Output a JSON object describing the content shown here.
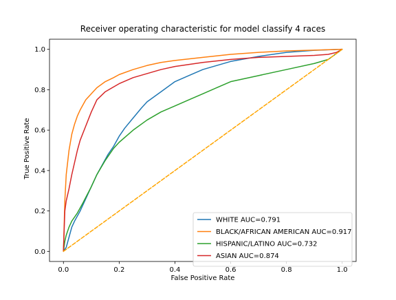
{
  "chart_data": {
    "type": "line",
    "title": "Receiver operating characteristic for model classify 4 races",
    "xlabel": "False Positive Rate",
    "ylabel": "True Positive Rate",
    "xlim": [
      -0.05,
      1.05
    ],
    "ylim": [
      -0.05,
      1.05
    ],
    "x_ticks": [
      0.0,
      0.2,
      0.4,
      0.6,
      0.8,
      1.0
    ],
    "y_ticks": [
      0.0,
      0.2,
      0.4,
      0.6,
      0.8,
      1.0
    ],
    "x_tick_labels": [
      "0.0",
      "0.2",
      "0.4",
      "0.6",
      "0.8",
      "1.0"
    ],
    "y_tick_labels": [
      "0.0",
      "0.2",
      "0.4",
      "0.6",
      "0.8",
      "1.0"
    ],
    "grid": false,
    "legend_position": "lower-right",
    "series": [
      {
        "name": "WHITE AUC=0.791",
        "color": "#1f77b4",
        "x": [
          0.0,
          0.01,
          0.02,
          0.03,
          0.04,
          0.06,
          0.08,
          0.1,
          0.12,
          0.14,
          0.16,
          0.18,
          0.2,
          0.22,
          0.25,
          0.28,
          0.3,
          0.35,
          0.4,
          0.45,
          0.5,
          0.55,
          0.6,
          0.7,
          0.8,
          0.9,
          1.0
        ],
        "y": [
          0.0,
          0.02,
          0.07,
          0.12,
          0.15,
          0.2,
          0.26,
          0.32,
          0.38,
          0.43,
          0.48,
          0.52,
          0.57,
          0.61,
          0.66,
          0.71,
          0.74,
          0.79,
          0.84,
          0.87,
          0.9,
          0.92,
          0.94,
          0.965,
          0.985,
          0.995,
          1.0
        ]
      },
      {
        "name": "BLACK/AFRICAN AMERICAN AUC=0.917",
        "color": "#ff7f0e",
        "x": [
          0.0,
          0.005,
          0.01,
          0.02,
          0.03,
          0.04,
          0.05,
          0.06,
          0.08,
          0.1,
          0.12,
          0.15,
          0.18,
          0.2,
          0.25,
          0.3,
          0.35,
          0.4,
          0.5,
          0.6,
          0.7,
          0.8,
          0.9,
          1.0
        ],
        "y": [
          0.0,
          0.25,
          0.38,
          0.5,
          0.58,
          0.63,
          0.67,
          0.7,
          0.75,
          0.78,
          0.81,
          0.84,
          0.86,
          0.875,
          0.9,
          0.92,
          0.935,
          0.945,
          0.96,
          0.975,
          0.985,
          0.992,
          0.996,
          1.0
        ]
      },
      {
        "name": "HISPANIC/LATINO AUC=0.732",
        "color": "#2ca02c",
        "x": [
          0.0,
          0.005,
          0.01,
          0.02,
          0.03,
          0.05,
          0.07,
          0.1,
          0.12,
          0.15,
          0.18,
          0.2,
          0.25,
          0.3,
          0.35,
          0.4,
          0.45,
          0.5,
          0.55,
          0.6,
          0.7,
          0.8,
          0.9,
          0.95,
          1.0
        ],
        "y": [
          0.0,
          0.05,
          0.08,
          0.12,
          0.15,
          0.19,
          0.24,
          0.32,
          0.38,
          0.45,
          0.51,
          0.54,
          0.6,
          0.65,
          0.69,
          0.72,
          0.75,
          0.78,
          0.81,
          0.84,
          0.87,
          0.9,
          0.93,
          0.95,
          1.0
        ]
      },
      {
        "name": "ASIAN AUC=0.874",
        "color": "#d62728",
        "x": [
          0.0,
          0.005,
          0.01,
          0.02,
          0.03,
          0.04,
          0.05,
          0.06,
          0.08,
          0.1,
          0.12,
          0.15,
          0.2,
          0.25,
          0.3,
          0.35,
          0.4,
          0.5,
          0.6,
          0.7,
          0.8,
          0.9,
          0.95,
          0.98,
          1.0
        ],
        "y": [
          0.0,
          0.2,
          0.25,
          0.31,
          0.38,
          0.44,
          0.5,
          0.55,
          0.62,
          0.69,
          0.75,
          0.79,
          0.83,
          0.86,
          0.88,
          0.9,
          0.915,
          0.935,
          0.95,
          0.96,
          0.965,
          0.97,
          0.975,
          0.985,
          1.0
        ]
      },
      {
        "name": "",
        "color": "#ffa500",
        "dashed": true,
        "x": [
          0.0,
          1.0
        ],
        "y": [
          0.0,
          1.0
        ]
      }
    ]
  }
}
